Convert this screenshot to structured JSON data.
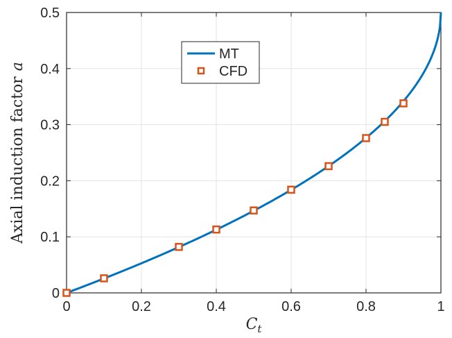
{
  "chart_data": {
    "type": "line",
    "xlabel": "C",
    "xlabel_sub": "t",
    "ylabel": "Axial induction factor",
    "ylabel_var": "a",
    "xlim": [
      0,
      1
    ],
    "ylim": [
      0,
      0.5
    ],
    "xticks": [
      "0",
      "0.2",
      "0.4",
      "0.6",
      "0.8",
      "1"
    ],
    "yticks": [
      "0",
      "0.1",
      "0.2",
      "0.3",
      "0.4",
      "0.5"
    ],
    "grid": true,
    "legend_position": "top-center",
    "series": [
      {
        "name": "MT",
        "kind": "line",
        "color": "#0072BD",
        "formula": "a = (1 - sqrt(1 - Ct)) / 2"
      },
      {
        "name": "CFD",
        "kind": "markers",
        "marker": "square",
        "color": "#D95319",
        "x": [
          0.0,
          0.1,
          0.3,
          0.4,
          0.5,
          0.6,
          0.7,
          0.8,
          0.85,
          0.9
        ],
        "y": [
          0.0,
          0.026,
          0.082,
          0.113,
          0.147,
          0.184,
          0.226,
          0.276,
          0.305,
          0.338
        ]
      }
    ]
  }
}
